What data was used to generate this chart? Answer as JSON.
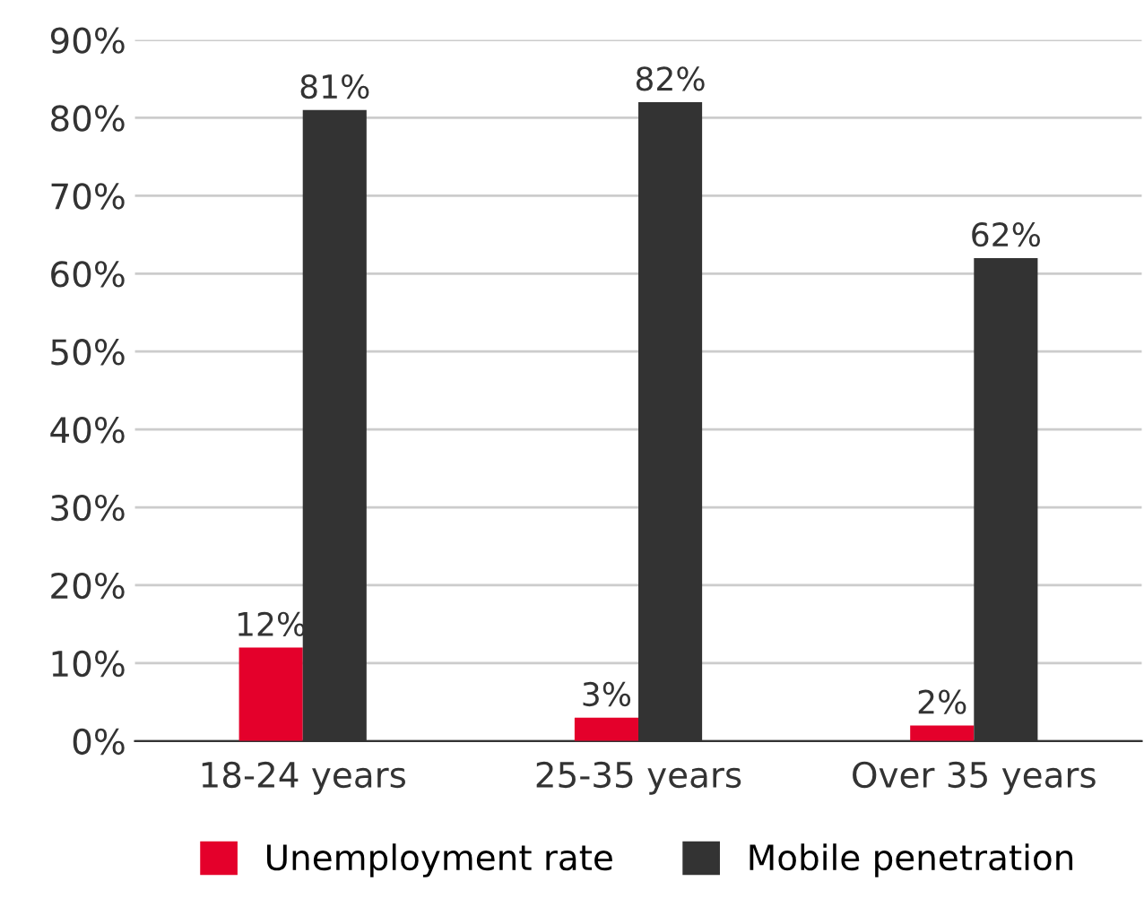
{
  "chart_data": {
    "type": "bar",
    "categories": [
      "18-24 years",
      "25-35 years",
      "Over 35 years"
    ],
    "series": [
      {
        "name": "Unemployment rate",
        "color": "#e4002b",
        "values": [
          12,
          3,
          2
        ],
        "value_labels": [
          "12%",
          "3%",
          "2%"
        ]
      },
      {
        "name": "Mobile penetration",
        "color": "#333333",
        "values": [
          81,
          82,
          62
        ],
        "value_labels": [
          "81%",
          "82%",
          "62%"
        ]
      }
    ],
    "ylim": [
      0,
      90
    ],
    "yticks": [
      {
        "value": 0,
        "label": "0%"
      },
      {
        "value": 10,
        "label": "10%"
      },
      {
        "value": 20,
        "label": "20%"
      },
      {
        "value": 30,
        "label": "30%"
      },
      {
        "value": 40,
        "label": "40%"
      },
      {
        "value": 50,
        "label": "50%"
      },
      {
        "value": 60,
        "label": "60%"
      },
      {
        "value": 70,
        "label": "70%"
      },
      {
        "value": 80,
        "label": "80%"
      },
      {
        "value": 90,
        "label": "90%"
      }
    ],
    "grid": "y",
    "legend": "bottom"
  }
}
